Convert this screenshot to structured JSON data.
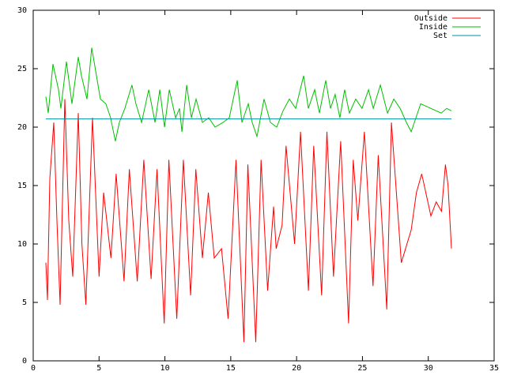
{
  "chart_data": {
    "type": "line",
    "xlim": [
      0,
      35
    ],
    "xticks": [
      0,
      5,
      10,
      15,
      20,
      25,
      30,
      35
    ],
    "ylim": [
      0,
      30
    ],
    "yticks": [
      0,
      5,
      10,
      15,
      20,
      25,
      30
    ],
    "grid": false,
    "legend": "upper right",
    "series": [
      {
        "name": "Outside",
        "color": "#ff0000",
        "x": [
          0.96,
          1.08,
          1.26,
          1.56,
          1.8,
          2.04,
          2.4,
          2.7,
          3.0,
          3.42,
          3.7,
          4.0,
          4.5,
          5.0,
          5.35,
          5.9,
          6.3,
          6.9,
          7.3,
          7.9,
          8.4,
          8.95,
          9.4,
          9.95,
          10.3,
          10.9,
          11.4,
          11.95,
          12.35,
          12.85,
          13.3,
          13.75,
          14.3,
          14.8,
          15.4,
          16.0,
          16.3,
          16.9,
          17.3,
          17.8,
          18.25,
          18.45,
          18.9,
          19.2,
          19.85,
          20.3,
          20.9,
          21.3,
          21.9,
          22.3,
          22.8,
          23.35,
          23.95,
          24.3,
          24.65,
          25.15,
          25.8,
          26.2,
          26.85,
          27.2,
          27.95,
          28.7,
          29.1,
          29.5,
          30.2,
          30.6,
          31.0,
          31.3,
          31.5,
          31.76
        ],
        "values": [
          8.4,
          5.2,
          15.6,
          20.4,
          12,
          4.8,
          22.4,
          12,
          7.2,
          21.2,
          10,
          4.8,
          20.8,
          7.2,
          14.4,
          8.8,
          16,
          6.8,
          16.4,
          6.8,
          17.2,
          7,
          16.4,
          3.2,
          17.2,
          3.6,
          17.2,
          5.6,
          16.4,
          8.8,
          14.4,
          8.8,
          9.6,
          3.6,
          17.2,
          1.6,
          16.8,
          1.6,
          17.2,
          6,
          13.2,
          9.6,
          11.6,
          18.4,
          10,
          19.6,
          6,
          18.4,
          5.6,
          19.6,
          7.2,
          18.8,
          3.2,
          17.2,
          12,
          19.6,
          6.4,
          17.6,
          4.4,
          20.4,
          8.4,
          11.2,
          14.4,
          16,
          12.4,
          13.6,
          12.8,
          16.8,
          15,
          9.6
        ]
      },
      {
        "name": "Inside",
        "color": "#00c000",
        "x": [
          0.96,
          1.14,
          1.5,
          1.92,
          2.1,
          2.52,
          2.94,
          3.42,
          3.66,
          4.08,
          4.44,
          4.74,
          5.1,
          5.52,
          5.88,
          6.24,
          6.54,
          6.96,
          7.5,
          7.8,
          8.23,
          8.77,
          9.25,
          9.61,
          9.97,
          10.33,
          10.81,
          11.11,
          11.29,
          11.65,
          12.01,
          12.37,
          12.85,
          13.33,
          13.81,
          14.41,
          14.89,
          15.49,
          15.85,
          16.33,
          16.63,
          16.99,
          17.53,
          18.01,
          18.49,
          18.97,
          19.45,
          19.93,
          20.53,
          20.89,
          21.37,
          21.73,
          22.21,
          22.57,
          22.93,
          23.29,
          23.65,
          24.01,
          24.49,
          24.97,
          25.46,
          25.82,
          26.36,
          26.9,
          27.38,
          27.86,
          28.34,
          28.7,
          29.42,
          30.2,
          30.98,
          31.4,
          31.76
        ],
        "values": [
          22.6,
          21.2,
          25.4,
          23.2,
          21.6,
          25.6,
          22,
          26,
          24.4,
          22.4,
          26.8,
          24.8,
          22.4,
          22,
          20.8,
          18.8,
          20.4,
          21.6,
          23.6,
          22,
          20.4,
          23.2,
          20.4,
          23.2,
          20,
          23.2,
          20.8,
          21.6,
          19.6,
          23.6,
          20.8,
          22.4,
          20.4,
          20.8,
          20,
          20.4,
          20.8,
          24,
          20.4,
          22,
          20.4,
          19.2,
          22.4,
          20.4,
          20,
          21.4,
          22.4,
          21.6,
          24.4,
          21.6,
          23.2,
          21.2,
          24,
          21.6,
          22.8,
          20.8,
          23.2,
          21.2,
          22.4,
          21.6,
          23.2,
          21.6,
          23.6,
          21.2,
          22.4,
          21.6,
          20.4,
          19.6,
          22,
          21.6,
          21.2,
          21.6,
          21.4
        ]
      },
      {
        "name": "Set",
        "color": "#0090a8",
        "x": [
          0.96,
          31.76
        ],
        "values": [
          20.7,
          20.7
        ]
      }
    ]
  }
}
